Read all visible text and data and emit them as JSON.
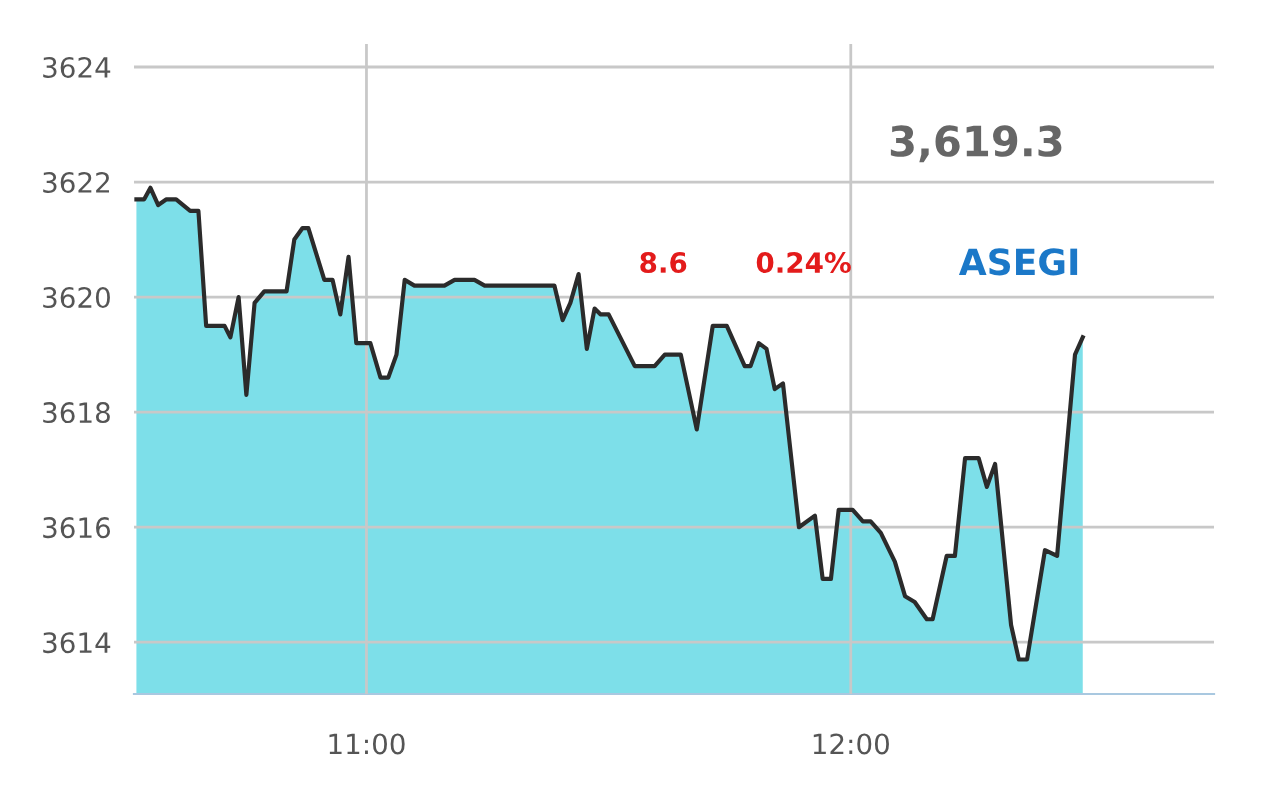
{
  "chart_data": {
    "type": "area",
    "x": [
      10.525,
      10.541,
      10.554,
      10.57,
      10.587,
      10.607,
      10.636,
      10.653,
      10.669,
      10.707,
      10.719,
      10.736,
      10.752,
      10.769,
      10.789,
      10.835,
      10.851,
      10.868,
      10.88,
      10.913,
      10.93,
      10.946,
      10.963,
      10.979,
      11.008,
      11.029,
      11.045,
      11.062,
      11.079,
      11.099,
      11.161,
      11.182,
      11.223,
      11.244,
      11.388,
      11.405,
      11.421,
      11.438,
      11.455,
      11.471,
      11.483,
      11.5,
      11.554,
      11.595,
      11.616,
      11.649,
      11.682,
      11.715,
      11.744,
      11.781,
      11.793,
      11.81,
      11.826,
      11.843,
      11.86,
      11.893,
      11.926,
      11.942,
      11.959,
      11.975,
      12.004,
      12.025,
      12.041,
      12.062,
      12.091,
      12.112,
      12.132,
      12.157,
      12.169,
      12.198,
      12.215,
      12.236,
      12.264,
      12.281,
      12.298,
      12.331,
      12.347,
      12.364,
      12.401,
      12.426,
      12.463,
      12.479
    ],
    "series": [
      {
        "color": "#2b2b2b",
        "values": [
          3621.7,
          3621.7,
          3621.9,
          3621.6,
          3621.7,
          3621.7,
          3621.5,
          3621.5,
          3619.5,
          3619.5,
          3619.3,
          3620.0,
          3618.3,
          3619.9,
          3620.1,
          3620.1,
          3621.0,
          3621.2,
          3621.2,
          3620.3,
          3620.3,
          3619.7,
          3620.7,
          3619.2,
          3619.2,
          3618.6,
          3618.6,
          3619.0,
          3620.3,
          3620.2,
          3620.2,
          3620.3,
          3620.3,
          3620.2,
          3620.2,
          3619.6,
          3619.9,
          3620.4,
          3619.1,
          3619.8,
          3619.7,
          3619.7,
          3618.8,
          3618.8,
          3619.0,
          3619.0,
          3617.7,
          3619.5,
          3619.5,
          3618.8,
          3618.8,
          3619.2,
          3619.1,
          3618.4,
          3618.5,
          3616.0,
          3616.2,
          3615.1,
          3615.1,
          3616.3,
          3616.3,
          3616.1,
          3616.1,
          3615.9,
          3615.4,
          3614.8,
          3614.7,
          3614.4,
          3614.4,
          3615.5,
          3615.5,
          3617.2,
          3617.2,
          3616.7,
          3617.1,
          3614.3,
          3613.7,
          3613.7,
          3615.6,
          3615.5,
          3619.0,
          3619.3
        ]
      }
    ],
    "xlim": [
      10.52,
      12.75
    ],
    "ylim": [
      3613.1,
      3624.4
    ],
    "xticks": [
      {
        "value": 11,
        "label": "11:00"
      },
      {
        "value": 12,
        "label": "12:00"
      }
    ],
    "yticks": [
      3614,
      3616,
      3618,
      3620,
      3622,
      3624
    ],
    "grid": true,
    "marker": "none",
    "line_style": "solid",
    "annotations": [
      "3,619.3",
      "8.6",
      "0.24%",
      "ASEGI"
    ]
  }
}
